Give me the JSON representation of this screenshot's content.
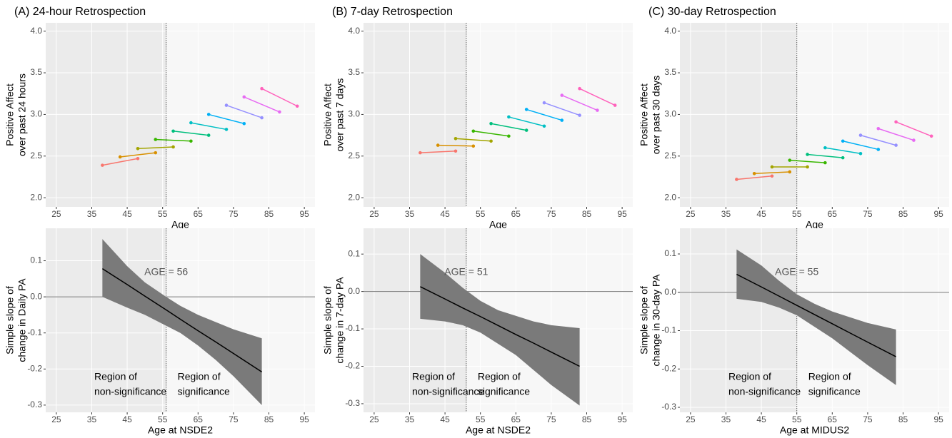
{
  "chart_data": [
    {
      "type": "line",
      "title": "(A) 24-hour Retrospection",
      "xlabel": "Age",
      "ylabel": [
        "Positive Affect",
        "over past 24 hours"
      ],
      "xlim": [
        22,
        98
      ],
      "xticks": [
        25,
        35,
        45,
        55,
        65,
        75,
        85,
        95
      ],
      "ylim": [
        1.89,
        4.1
      ],
      "yticks": [
        {
          "value": 2,
          "label": "2.0"
        },
        2.5,
        {
          "value": 3,
          "label": "3.0"
        },
        3.5,
        {
          "value": 4,
          "label": "4.0"
        }
      ],
      "grid": true,
      "threshold": 56,
      "series": [
        {
          "color": "#F8766D",
          "x": [
            38,
            48
          ],
          "values": [
            2.39,
            2.47
          ]
        },
        {
          "color": "#D89000",
          "x": [
            43,
            53
          ],
          "values": [
            2.49,
            2.54
          ]
        },
        {
          "color": "#A3A500",
          "x": [
            48,
            58
          ],
          "values": [
            2.59,
            2.61
          ]
        },
        {
          "color": "#39B600",
          "x": [
            53,
            63
          ],
          "values": [
            2.7,
            2.68
          ]
        },
        {
          "color": "#00BF7D",
          "x": [
            58,
            68
          ],
          "values": [
            2.8,
            2.75
          ]
        },
        {
          "color": "#00BFC4",
          "x": [
            63,
            73
          ],
          "values": [
            2.9,
            2.82
          ]
        },
        {
          "color": "#00B0F6",
          "x": [
            68,
            78
          ],
          "values": [
            3.0,
            2.89
          ]
        },
        {
          "color": "#9590FF",
          "x": [
            73,
            83
          ],
          "values": [
            3.11,
            2.96
          ]
        },
        {
          "color": "#E76BF3",
          "x": [
            78,
            88
          ],
          "values": [
            3.21,
            3.03
          ]
        },
        {
          "color": "#FF62BC",
          "x": [
            83,
            93
          ],
          "values": [
            3.31,
            3.1
          ]
        }
      ]
    },
    {
      "type": "line",
      "title": "(B) 7-day Retrospection",
      "xlabel": "Age",
      "ylabel": [
        "Positive Affect",
        "over past 7 days"
      ],
      "xlim": [
        22,
        98
      ],
      "xticks": [
        25,
        35,
        45,
        55,
        65,
        75,
        85,
        95
      ],
      "ylim": [
        1.89,
        4.1
      ],
      "yticks": [
        {
          "value": 2,
          "label": "2.0"
        },
        2.5,
        {
          "value": 3,
          "label": "3.0"
        },
        3.5,
        {
          "value": 4,
          "label": "4.0"
        }
      ],
      "grid": true,
      "threshold": 51,
      "series": [
        {
          "color": "#F8766D",
          "x": [
            38,
            48
          ],
          "values": [
            2.54,
            2.56
          ]
        },
        {
          "color": "#D89000",
          "x": [
            43,
            53
          ],
          "values": [
            2.63,
            2.62
          ]
        },
        {
          "color": "#A3A500",
          "x": [
            48,
            58
          ],
          "values": [
            2.71,
            2.68
          ]
        },
        {
          "color": "#39B600",
          "x": [
            53,
            63
          ],
          "values": [
            2.8,
            2.74
          ]
        },
        {
          "color": "#00BF7D",
          "x": [
            58,
            68
          ],
          "values": [
            2.89,
            2.81
          ]
        },
        {
          "color": "#00BFC4",
          "x": [
            63,
            73
          ],
          "values": [
            2.97,
            2.86
          ]
        },
        {
          "color": "#00B0F6",
          "x": [
            68,
            78
          ],
          "values": [
            3.06,
            2.93
          ]
        },
        {
          "color": "#9590FF",
          "x": [
            73,
            83
          ],
          "values": [
            3.14,
            2.99
          ]
        },
        {
          "color": "#E76BF3",
          "x": [
            78,
            88
          ],
          "values": [
            3.23,
            3.05
          ]
        },
        {
          "color": "#FF62BC",
          "x": [
            83,
            93
          ],
          "values": [
            3.31,
            3.11
          ]
        }
      ]
    },
    {
      "type": "line",
      "title": "(C) 30-day Retrospection",
      "xlabel": "Age",
      "ylabel": [
        "Positive Affect",
        "over past 30 days"
      ],
      "xlim": [
        22,
        98
      ],
      "xticks": [
        25,
        35,
        45,
        55,
        65,
        75,
        85,
        95
      ],
      "ylim": [
        1.89,
        4.1
      ],
      "yticks": [
        {
          "value": 2,
          "label": "2.0"
        },
        2.5,
        {
          "value": 3,
          "label": "3.0"
        },
        3.5,
        {
          "value": 4,
          "label": "4.0"
        }
      ],
      "grid": true,
      "threshold": 55,
      "series": [
        {
          "color": "#F8766D",
          "x": [
            38,
            48
          ],
          "values": [
            2.22,
            2.26
          ]
        },
        {
          "color": "#D89000",
          "x": [
            43,
            53
          ],
          "values": [
            2.29,
            2.31
          ]
        },
        {
          "color": "#A3A500",
          "x": [
            48,
            58
          ],
          "values": [
            2.37,
            2.37
          ]
        },
        {
          "color": "#39B600",
          "x": [
            53,
            63
          ],
          "values": [
            2.45,
            2.42
          ]
        },
        {
          "color": "#00BF7D",
          "x": [
            58,
            68
          ],
          "values": [
            2.52,
            2.48
          ]
        },
        {
          "color": "#00BFC4",
          "x": [
            63,
            73
          ],
          "values": [
            2.6,
            2.53
          ]
        },
        {
          "color": "#00B0F6",
          "x": [
            68,
            78
          ],
          "values": [
            2.68,
            2.58
          ]
        },
        {
          "color": "#9590FF",
          "x": [
            73,
            83
          ],
          "values": [
            2.75,
            2.63
          ]
        },
        {
          "color": "#E76BF3",
          "x": [
            78,
            88
          ],
          "values": [
            2.83,
            2.69
          ]
        },
        {
          "color": "#FF62BC",
          "x": [
            83,
            93
          ],
          "values": [
            2.91,
            2.74
          ]
        }
      ]
    },
    {
      "type": "band",
      "xlabel": "Age at NSDE2",
      "ylabel": [
        "Simple slope of",
        "change in Daily PA"
      ],
      "xlim": [
        22,
        98
      ],
      "xticks": [
        25,
        35,
        45,
        55,
        65,
        75,
        85,
        95
      ],
      "ylim": [
        -0.32,
        0.19
      ],
      "yticks": [
        -0.3,
        -0.2,
        -0.1,
        {
          "value": 0,
          "label": "0.0"
        },
        0.1
      ],
      "grid": true,
      "threshold": 56,
      "annotation": "AGE = 56",
      "region_labels": [
        [
          "Region of",
          "non-significance"
        ],
        [
          "Region of",
          "significance"
        ]
      ],
      "series": [
        {
          "color": "#000000",
          "band_color": "#7a7a7a",
          "x": [
            38,
            45,
            50,
            56,
            60,
            65,
            70,
            75,
            83
          ],
          "values": [
            0.078,
            0.034,
            0.002,
            -0.036,
            -0.062,
            -0.094,
            -0.125,
            -0.157,
            -0.208
          ],
          "upper": [
            0.16,
            0.085,
            0.04,
            0.0,
            -0.025,
            -0.05,
            -0.07,
            -0.09,
            -0.115
          ],
          "lower": [
            0.0,
            -0.03,
            -0.05,
            -0.08,
            -0.1,
            -0.135,
            -0.175,
            -0.22,
            -0.3
          ]
        }
      ]
    },
    {
      "type": "band",
      "xlabel": "Age at NSDE2",
      "ylabel": [
        "Simple slope of",
        "change in 7-day PA"
      ],
      "xlim": [
        22,
        98
      ],
      "xticks": [
        25,
        35,
        45,
        55,
        65,
        75,
        85,
        95
      ],
      "ylim": [
        -0.323,
        0.169
      ],
      "yticks": [
        -0.3,
        -0.2,
        -0.1,
        {
          "value": 0,
          "label": "0.0"
        },
        0.1
      ],
      "grid": true,
      "threshold": 51,
      "annotation": "AGE = 51",
      "region_labels": [
        [
          "Region of",
          "non-significance"
        ],
        [
          "Region of",
          "significance"
        ]
      ],
      "series": [
        {
          "color": "#000000",
          "band_color": "#7a7a7a",
          "x": [
            38,
            45,
            50,
            55,
            60,
            65,
            70,
            75,
            83
          ],
          "values": [
            0.013,
            -0.02,
            -0.044,
            -0.067,
            -0.091,
            -0.115,
            -0.138,
            -0.162,
            -0.2
          ],
          "upper": [
            0.1,
            0.05,
            0.01,
            -0.025,
            -0.05,
            -0.065,
            -0.08,
            -0.09,
            -0.098
          ],
          "lower": [
            -0.073,
            -0.08,
            -0.09,
            -0.11,
            -0.14,
            -0.17,
            -0.21,
            -0.25,
            -0.305
          ]
        }
      ]
    },
    {
      "type": "band",
      "xlabel": "Age at MIDUS2",
      "ylabel": [
        "Simple slope of",
        "change in 30-day PA"
      ],
      "xlim": [
        22,
        98
      ],
      "xticks": [
        25,
        35,
        45,
        55,
        65,
        75,
        85,
        95
      ],
      "ylim": [
        -0.313,
        0.167
      ],
      "yticks": [
        -0.3,
        -0.2,
        -0.1,
        {
          "value": 0,
          "label": "0.0"
        },
        0.1
      ],
      "grid": true,
      "threshold": 55,
      "annotation": "AGE = 55",
      "region_labels": [
        [
          "Region of",
          "non-significance"
        ],
        [
          "Region of",
          "significance"
        ]
      ],
      "series": [
        {
          "color": "#000000",
          "band_color": "#7a7a7a",
          "x": [
            38,
            45,
            50,
            55,
            60,
            65,
            70,
            75,
            83
          ],
          "values": [
            0.047,
            0.014,
            -0.01,
            -0.034,
            -0.058,
            -0.082,
            -0.106,
            -0.13,
            -0.168
          ],
          "upper": [
            0.112,
            0.07,
            0.03,
            -0.005,
            -0.03,
            -0.05,
            -0.065,
            -0.08,
            -0.097
          ],
          "lower": [
            -0.017,
            -0.025,
            -0.04,
            -0.06,
            -0.09,
            -0.12,
            -0.155,
            -0.19,
            -0.242
          ]
        }
      ]
    }
  ]
}
